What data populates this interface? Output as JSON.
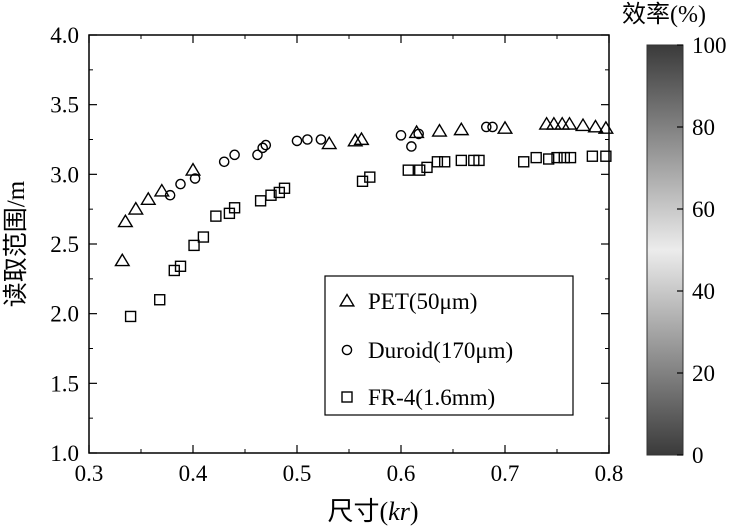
{
  "chart_data": {
    "type": "scatter",
    "xlabel_main": "尺寸(",
    "xlabel_var": "kr",
    "xlabel_close": ")",
    "ylabel": "读取范围/m",
    "xlim": [
      0.3,
      0.8
    ],
    "ylim": [
      1.0,
      4.0
    ],
    "xticks": [
      "0.3",
      "0.4",
      "0.5",
      "0.6",
      "0.7",
      "0.8"
    ],
    "yticks": [
      "1.0",
      "1.5",
      "2.0",
      "2.5",
      "3.0",
      "3.5",
      "4.0"
    ],
    "grid": false,
    "legend_position": "bottom-right",
    "series": [
      {
        "name": "PET(50μm)",
        "marker": "triangle",
        "points": [
          [
            0.332,
            2.38
          ],
          [
            0.335,
            2.66
          ],
          [
            0.345,
            2.75
          ],
          [
            0.357,
            2.82
          ],
          [
            0.37,
            2.88
          ],
          [
            0.4,
            3.03
          ],
          [
            0.531,
            3.22
          ],
          [
            0.556,
            3.24
          ],
          [
            0.562,
            3.25
          ],
          [
            0.615,
            3.3
          ],
          [
            0.637,
            3.31
          ],
          [
            0.658,
            3.32
          ],
          [
            0.7,
            3.33
          ],
          [
            0.74,
            3.36
          ],
          [
            0.747,
            3.36
          ],
          [
            0.755,
            3.36
          ],
          [
            0.762,
            3.36
          ],
          [
            0.775,
            3.35
          ],
          [
            0.787,
            3.34
          ],
          [
            0.797,
            3.33
          ]
        ]
      },
      {
        "name": "Duroid(170μm)",
        "marker": "circle",
        "points": [
          [
            0.378,
            2.85
          ],
          [
            0.388,
            2.93
          ],
          [
            0.402,
            2.97
          ],
          [
            0.43,
            3.09
          ],
          [
            0.44,
            3.14
          ],
          [
            0.462,
            3.14
          ],
          [
            0.467,
            3.19
          ],
          [
            0.47,
            3.21
          ],
          [
            0.5,
            3.24
          ],
          [
            0.51,
            3.25
          ],
          [
            0.523,
            3.25
          ],
          [
            0.6,
            3.28
          ],
          [
            0.61,
            3.2
          ],
          [
            0.617,
            3.29
          ],
          [
            0.682,
            3.34
          ],
          [
            0.688,
            3.34
          ]
        ]
      },
      {
        "name": "FR-4(1.6mm)",
        "marker": "square",
        "points": [
          [
            0.34,
            1.98
          ],
          [
            0.368,
            2.1
          ],
          [
            0.382,
            2.31
          ],
          [
            0.388,
            2.34
          ],
          [
            0.401,
            2.49
          ],
          [
            0.41,
            2.55
          ],
          [
            0.422,
            2.7
          ],
          [
            0.435,
            2.72
          ],
          [
            0.44,
            2.76
          ],
          [
            0.465,
            2.81
          ],
          [
            0.475,
            2.85
          ],
          [
            0.483,
            2.87
          ],
          [
            0.488,
            2.9
          ],
          [
            0.563,
            2.95
          ],
          [
            0.57,
            2.98
          ],
          [
            0.607,
            3.03
          ],
          [
            0.618,
            3.03
          ],
          [
            0.625,
            3.05
          ],
          [
            0.635,
            3.09
          ],
          [
            0.642,
            3.09
          ],
          [
            0.658,
            3.1
          ],
          [
            0.67,
            3.1
          ],
          [
            0.675,
            3.1
          ],
          [
            0.718,
            3.09
          ],
          [
            0.73,
            3.12
          ],
          [
            0.742,
            3.11
          ],
          [
            0.75,
            3.12
          ],
          [
            0.757,
            3.12
          ],
          [
            0.763,
            3.12
          ],
          [
            0.784,
            3.13
          ],
          [
            0.797,
            3.13
          ]
        ]
      }
    ],
    "colorbar": {
      "title": "效率(%)",
      "range": [
        0,
        100
      ],
      "ticks": [
        "0",
        "20",
        "40",
        "60",
        "80",
        "100"
      ],
      "color_low": "#3a3a3a",
      "color_mid": "#ececec",
      "color_high": "#3a3a3a"
    }
  }
}
